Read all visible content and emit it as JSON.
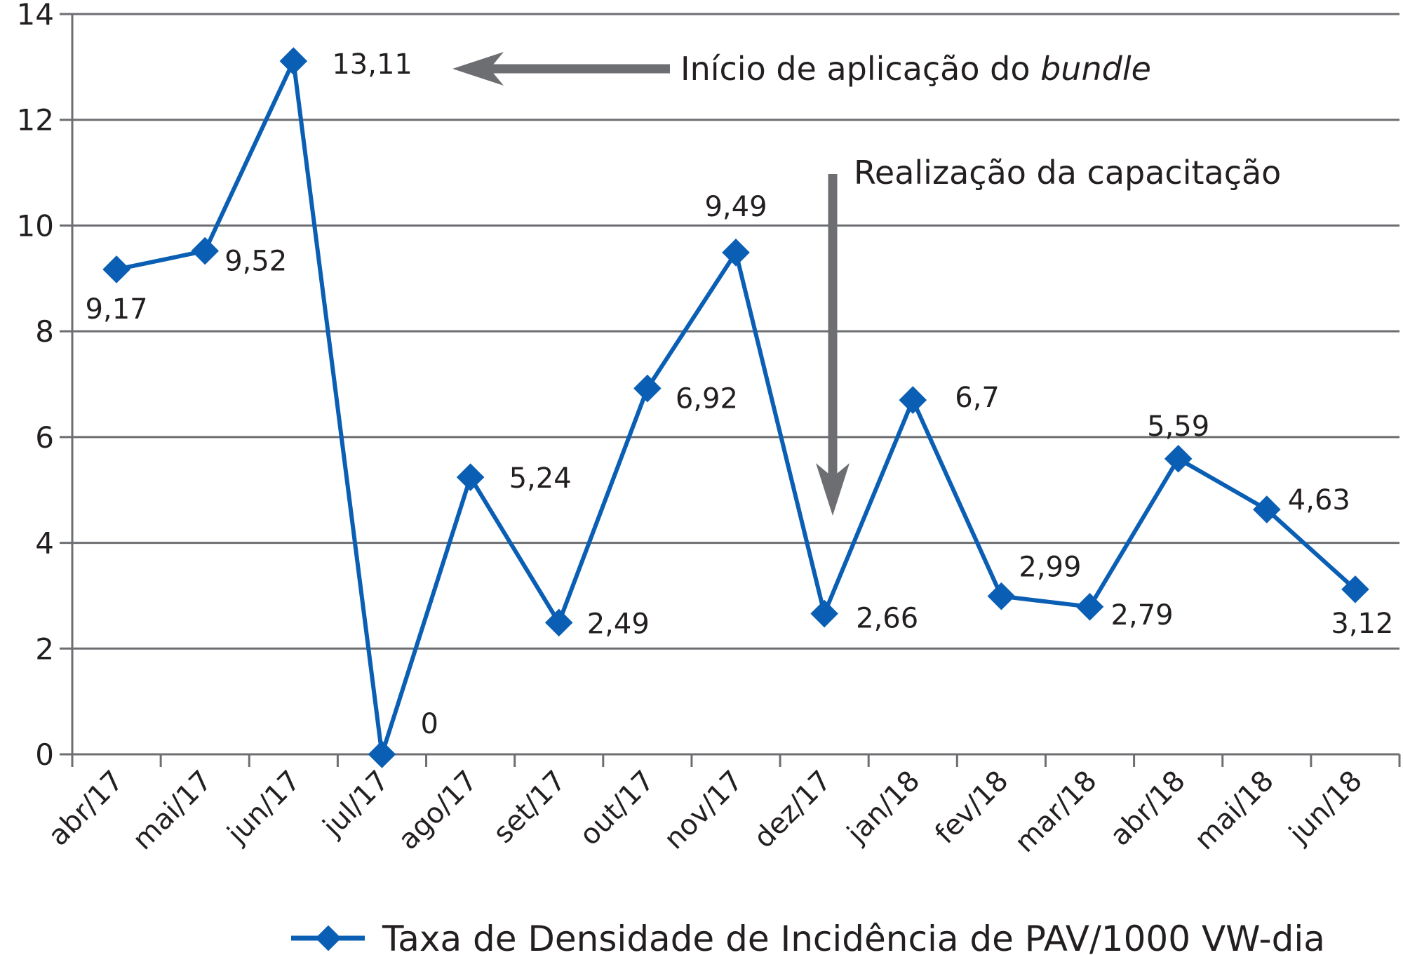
{
  "chart_data": {
    "type": "line",
    "title": "",
    "xlabel": "",
    "ylabel": "",
    "categories": [
      "abr/17",
      "mai/17",
      "jun/17",
      "jul/17",
      "ago/17",
      "set/17",
      "out/17",
      "nov/17",
      "dez/17",
      "jan/18",
      "fev/18",
      "mar/18",
      "abr/18",
      "mai/18",
      "jun/18"
    ],
    "series": [
      {
        "name": "Taxa de Densidade de Incidência de PAV/1000 VW-dia",
        "color": "#0a5fb4",
        "values": [
          9.17,
          9.52,
          13.11,
          0,
          5.24,
          2.49,
          6.92,
          9.49,
          2.66,
          6.7,
          2.99,
          2.79,
          5.59,
          4.63,
          3.12
        ],
        "labels": [
          "9,17",
          "9,52",
          "13,11",
          "0",
          "5,24",
          "2,49",
          "6,92",
          "9,49",
          "2,66",
          "6,7",
          "2,99",
          "2,79",
          "5,59",
          "4,63",
          "3,12"
        ]
      }
    ],
    "ylim": [
      0,
      14
    ],
    "yticks": [
      0,
      2,
      4,
      6,
      8,
      10,
      12,
      14
    ],
    "grid": true,
    "legend": "bottom",
    "annotations": [
      {
        "text": "Início de aplicação do ",
        "emphasis": "bundle",
        "arrow": "left",
        "points_to": "jun/17"
      },
      {
        "text": "Realização da capacitação",
        "arrow": "down",
        "points_to": "dez/17"
      }
    ],
    "annotation_color": "#6d6e71"
  }
}
